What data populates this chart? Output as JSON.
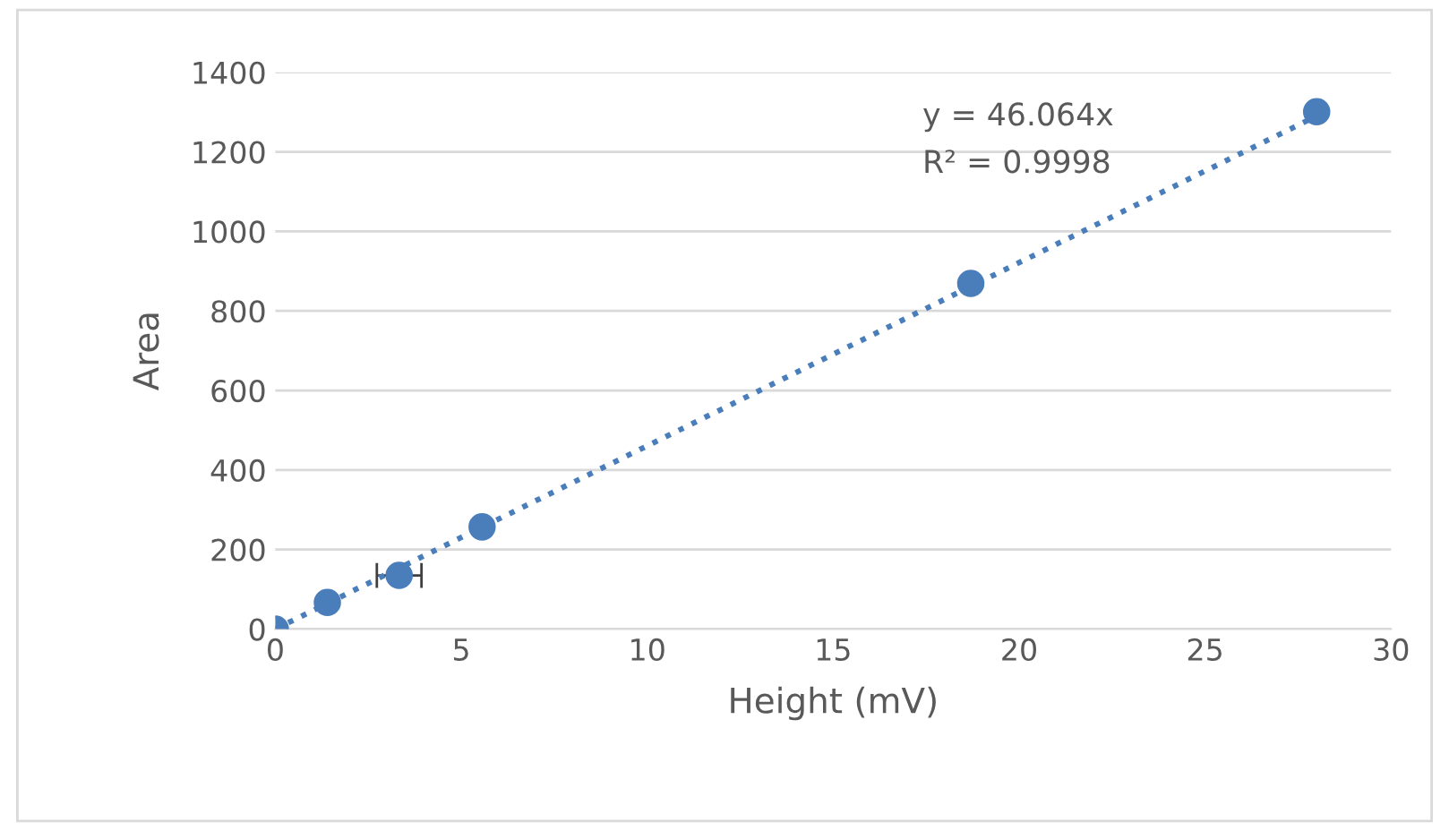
{
  "chart_data": {
    "type": "scatter",
    "xlabel": "Height (mV)",
    "ylabel": "Area",
    "x": [
      0,
      1.4,
      3.33,
      5.56,
      18.7,
      28.0
    ],
    "series": [
      {
        "color": "#4a7ebb",
        "values": [
          0,
          67,
          135,
          257,
          869,
          1301
        ],
        "xerrors": [
          null,
          null,
          0.6,
          null,
          null,
          null
        ]
      },
      {
        "type": "line",
        "color": "#4a7ebb",
        "x": [
          0,
          28.0
        ],
        "values": [
          0,
          1290
        ],
        "line_style": "dotted",
        "marker": "none"
      }
    ],
    "annotations": [
      "y = 46.064x",
      "R² = 0.9998"
    ],
    "xlim": [
      0,
      30
    ],
    "xticks": [
      0,
      5,
      10,
      15,
      20,
      25,
      30
    ],
    "ylim": [
      0,
      1400
    ],
    "yticks": [
      0,
      200,
      400,
      600,
      800,
      1000,
      1200,
      1400
    ],
    "grid": "y",
    "legend": false,
    "marker": "circle"
  }
}
